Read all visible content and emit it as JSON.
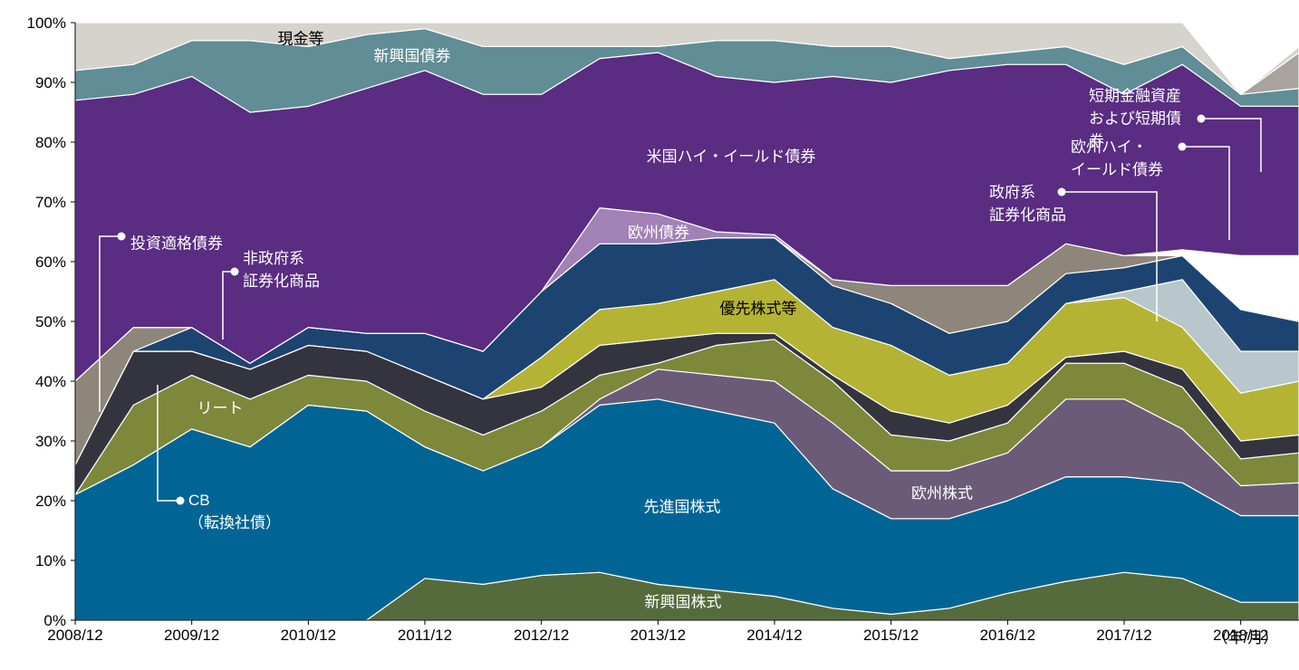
{
  "chart_data": {
    "type": "stacked_area",
    "x": [
      "2008/12",
      "2009/06",
      "2009/12",
      "2010/06",
      "2010/12",
      "2011/06",
      "2011/12",
      "2012/06",
      "2012/12",
      "2013/06",
      "2013/12",
      "2014/06",
      "2014/12",
      "2015/06",
      "2015/12",
      "2016/06",
      "2016/12",
      "2017/06",
      "2017/12",
      "2018/06",
      "2018/12",
      "2019/06"
    ],
    "xlim": [
      "2008/12",
      "2019/06"
    ],
    "xticks": [
      "2008/12",
      "2009/12",
      "2010/12",
      "2011/12",
      "2012/12",
      "2013/12",
      "2014/12",
      "2015/12",
      "2016/12",
      "2017/12",
      "2018/12"
    ],
    "x_label": "（年/月）",
    "ylim": [
      0,
      100
    ],
    "yticks": [
      {
        "value": 0,
        "label": "0%"
      },
      {
        "value": 10,
        "label": "10%"
      },
      {
        "value": 20,
        "label": "20%"
      },
      {
        "value": 30,
        "label": "30%"
      },
      {
        "value": 40,
        "label": "40%"
      },
      {
        "value": 50,
        "label": "50%"
      },
      {
        "value": 60,
        "label": "60%"
      },
      {
        "value": 70,
        "label": "70%"
      },
      {
        "value": 80,
        "label": "80%"
      },
      {
        "value": 90,
        "label": "90%"
      },
      {
        "value": 100,
        "label": "100%"
      }
    ],
    "series": [
      {
        "name": "新興国株式",
        "color": "#566b3c",
        "values": [
          0,
          0,
          0,
          0,
          0,
          0,
          7,
          6,
          7.5,
          8,
          6,
          5,
          4,
          2,
          1,
          2,
          4.5,
          6.5,
          8,
          7,
          3,
          3
        ]
      },
      {
        "name": "先進国株式",
        "color": "#006595",
        "values": [
          21,
          26,
          32,
          29,
          36,
          35,
          22,
          19,
          21.5,
          28,
          31,
          30,
          29,
          20,
          16,
          15,
          15.5,
          17.5,
          16,
          16,
          14.5,
          14.5
        ]
      },
      {
        "name": "欧州株式",
        "color": "#6b5b78",
        "values": [
          0,
          0,
          0,
          0,
          0,
          0,
          0,
          0,
          0,
          1,
          5,
          6,
          7,
          11,
          8,
          8,
          8,
          13,
          13,
          9,
          5,
          5.5
        ]
      },
      {
        "name": "リート",
        "color": "#7d883a",
        "values": [
          0,
          10,
          9,
          8,
          5,
          5,
          6,
          6,
          6,
          4,
          1,
          5,
          7,
          7,
          6,
          5,
          5,
          6,
          6,
          7,
          4.5,
          5
        ]
      },
      {
        "name": "CB\n（転換社債）",
        "color": "#34343f",
        "values": [
          5,
          9,
          4,
          5,
          5,
          5,
          6,
          6,
          4,
          5,
          4,
          2,
          1,
          1,
          4,
          3,
          3,
          1,
          2,
          3,
          3,
          3
        ]
      },
      {
        "name": "優先株式等",
        "color": "#b5b334",
        "values": [
          0,
          0,
          0,
          0,
          0,
          0,
          0,
          0,
          5,
          6,
          6,
          7,
          9,
          8,
          11,
          8,
          7,
          9,
          9,
          7,
          8,
          9
        ]
      },
      {
        "name": "政府系\n証券化商品",
        "color": "#b8c7cb",
        "values": [
          0,
          0,
          0,
          0,
          0,
          0,
          0,
          0,
          0,
          0,
          0,
          0,
          0,
          0,
          0,
          0,
          0,
          0,
          1,
          8,
          7,
          5
        ]
      },
      {
        "name": "非政府系\n証券化商品",
        "color": "#1d4470",
        "values": [
          0,
          0,
          4,
          1,
          3,
          3,
          7,
          8,
          11,
          11,
          10,
          9,
          7,
          7,
          7,
          7,
          7,
          5,
          4,
          4,
          7,
          5
        ]
      },
      {
        "name": "投資適格債券",
        "color": "#8e867a",
        "values": [
          14,
          4,
          0,
          0,
          0,
          0,
          0,
          0,
          0,
          0,
          0,
          0,
          0,
          1,
          3,
          8,
          6,
          5,
          2,
          0,
          0,
          0
        ]
      },
      {
        "name": "欧州債券",
        "color": "#a181b6",
        "values": [
          0,
          0,
          0,
          0,
          0,
          0,
          0,
          0,
          0,
          6,
          5,
          1,
          0.5,
          0,
          0,
          0,
          0,
          0,
          0,
          0,
          0,
          0
        ]
      },
      {
        "name": "欧州ハイ・\nイールド債券",
        "color": "#ffffff",
        "values": [
          0,
          0,
          0,
          0,
          0,
          0,
          0,
          0,
          0,
          0,
          0,
          0,
          0,
          0,
          0,
          0,
          0,
          0,
          0,
          1,
          9,
          11
        ]
      },
      {
        "name": "米国ハイ・イールド債券",
        "color": "#5a2c82",
        "values": [
          47,
          39,
          42,
          42,
          37,
          41,
          44,
          43,
          33,
          25,
          27,
          26,
          25.5,
          34,
          34,
          36,
          37,
          30,
          27,
          31,
          25,
          25
        ]
      },
      {
        "name": "新興国債券",
        "color": "#608d96",
        "values": [
          5,
          5,
          6,
          12,
          10,
          9,
          7,
          8,
          8,
          2,
          1,
          6,
          7,
          5,
          6,
          2,
          2,
          3,
          5,
          3,
          2,
          3
        ]
      },
      {
        "name": "短期金融資産および短期債券",
        "color": "#a8a39c",
        "values": [
          0,
          0,
          0,
          0,
          0,
          0,
          0,
          0,
          0,
          0,
          0,
          0,
          0,
          0,
          0,
          0,
          0,
          0,
          0,
          0,
          0,
          6
        ]
      },
      {
        "name": "現金等",
        "color": "#d6d2cc",
        "values": [
          8,
          7,
          3,
          3,
          4,
          2,
          1,
          4,
          4,
          4,
          4,
          3,
          3,
          4,
          4,
          6,
          5,
          4,
          7,
          4,
          0,
          1
        ]
      }
    ]
  }
}
